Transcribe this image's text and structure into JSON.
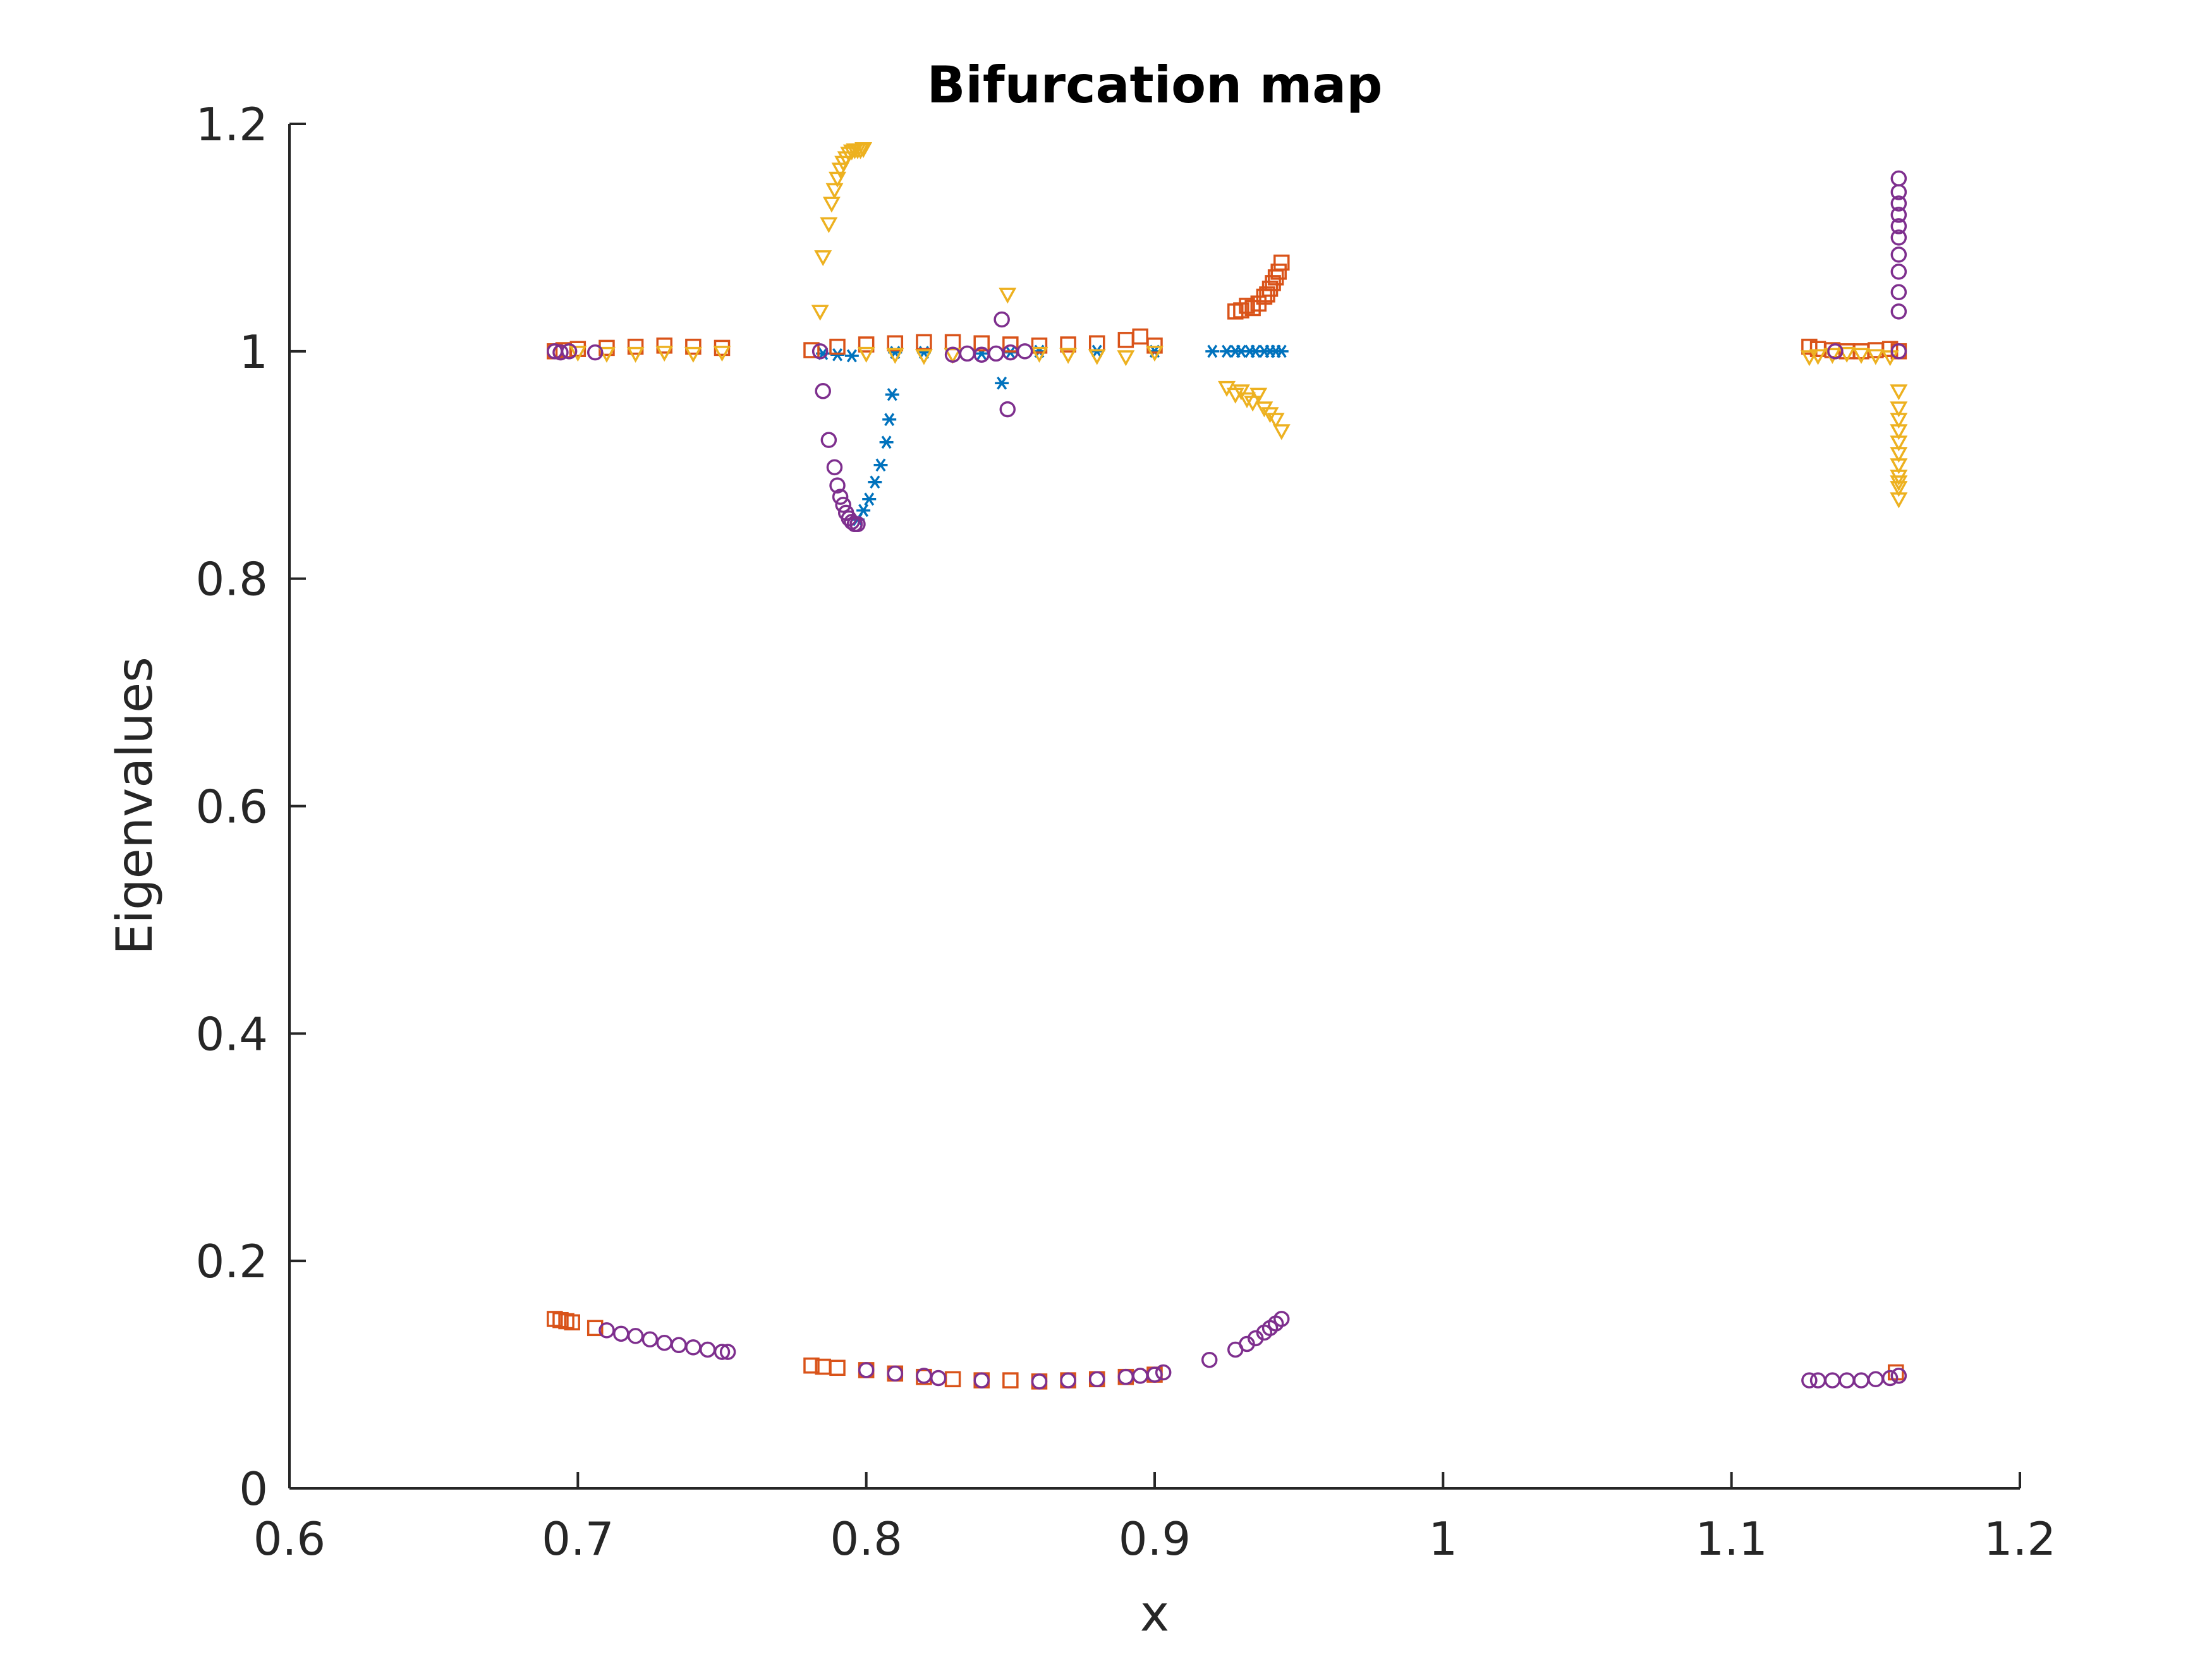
{
  "chart_data": {
    "type": "scatter",
    "title": "Bifurcation map",
    "xlabel": "x",
    "ylabel": "Eigenvalues",
    "xlim": [
      0.6,
      1.2
    ],
    "ylim": [
      0,
      1.2
    ],
    "xticks": [
      0.6,
      0.7,
      0.8,
      0.9,
      1.0,
      1.1,
      1.2
    ],
    "xtick_labels": [
      "0.6",
      "0.7",
      "0.8",
      "0.9",
      "1",
      "1.1",
      "1.2"
    ],
    "yticks": [
      0,
      0.2,
      0.4,
      0.6,
      0.8,
      1.0,
      1.2
    ],
    "ytick_labels": [
      "0",
      "0.2",
      "0.4",
      "0.6",
      "0.8",
      "1",
      "1.2"
    ],
    "grid": false,
    "legend": "none",
    "series": [
      {
        "marker": "asterisk",
        "color": "#0072BD",
        "x": [
          0.785,
          0.79,
          0.795,
          0.797,
          0.799,
          0.801,
          0.803,
          0.805,
          0.807,
          0.808,
          0.809,
          0.81,
          0.82,
          0.84,
          0.847,
          0.85,
          0.86,
          0.88,
          0.9,
          0.92,
          0.925,
          0.928,
          0.93,
          0.933,
          0.935,
          0.938,
          0.94,
          0.942,
          0.944
        ],
        "y": [
          0.998,
          0.997,
          0.996,
          0.852,
          0.86,
          0.87,
          0.885,
          0.9,
          0.92,
          0.94,
          0.962,
          0.999,
          0.999,
          0.998,
          0.972,
          0.999,
          1.0,
          1.0,
          1.0,
          1.0,
          1.0,
          1.0,
          1.0,
          1.0,
          1.0,
          1.0,
          1.0,
          1.0,
          1.0
        ]
      },
      {
        "marker": "square",
        "color": "#D95319",
        "x": [
          0.692,
          0.695,
          0.7,
          0.71,
          0.72,
          0.73,
          0.74,
          0.75,
          0.692,
          0.694,
          0.696,
          0.698,
          0.706,
          0.781,
          0.79,
          0.8,
          0.81,
          0.82,
          0.83,
          0.84,
          0.85,
          0.86,
          0.87,
          0.88,
          0.89,
          0.895,
          0.9,
          0.928,
          0.93,
          0.932,
          0.934,
          0.936,
          0.938,
          0.939,
          0.94,
          0.941,
          0.942,
          0.943,
          0.944,
          0.781,
          0.785,
          0.79,
          0.8,
          0.81,
          0.82,
          0.83,
          0.84,
          0.85,
          0.86,
          0.87,
          0.88,
          0.89,
          0.9,
          1.127,
          1.13,
          1.135,
          1.14,
          1.145,
          1.15,
          1.155,
          1.158,
          1.157
        ],
        "y": [
          1.0,
          1.001,
          1.002,
          1.003,
          1.004,
          1.005,
          1.004,
          1.003,
          0.149,
          0.148,
          0.147,
          0.146,
          0.141,
          1.001,
          1.004,
          1.006,
          1.007,
          1.008,
          1.008,
          1.007,
          1.006,
          1.005,
          1.006,
          1.007,
          1.01,
          1.013,
          1.005,
          1.035,
          1.036,
          1.04,
          1.038,
          1.042,
          1.048,
          1.05,
          1.055,
          1.06,
          1.065,
          1.07,
          1.078,
          0.108,
          0.107,
          0.106,
          0.104,
          0.101,
          0.098,
          0.096,
          0.095,
          0.095,
          0.094,
          0.095,
          0.096,
          0.098,
          0.1,
          1.004,
          1.002,
          1.001,
          1.0,
          1.0,
          1.001,
          1.002,
          1.0,
          0.102
        ]
      },
      {
        "marker": "triangle-down",
        "color": "#EDB120",
        "x": [
          0.7,
          0.71,
          0.72,
          0.73,
          0.74,
          0.75,
          0.784,
          0.785,
          0.787,
          0.788,
          0.789,
          0.79,
          0.791,
          0.792,
          0.793,
          0.794,
          0.795,
          0.796,
          0.797,
          0.798,
          0.799,
          0.8,
          0.81,
          0.82,
          0.83,
          0.849,
          0.86,
          0.87,
          0.88,
          0.89,
          0.9,
          0.925,
          0.928,
          0.93,
          0.932,
          0.934,
          0.936,
          0.938,
          0.94,
          0.942,
          0.944,
          1.127,
          1.13,
          1.135,
          1.14,
          1.145,
          1.15,
          1.155,
          1.158,
          1.158,
          1.158,
          1.158,
          1.158,
          1.158,
          1.158,
          1.158,
          1.158,
          1.158,
          1.158
        ],
        "y": [
          0.999,
          0.998,
          0.998,
          0.999,
          0.998,
          0.999,
          1.035,
          1.083,
          1.112,
          1.13,
          1.142,
          1.152,
          1.16,
          1.166,
          1.17,
          1.174,
          1.176,
          1.177,
          1.177,
          1.177,
          1.178,
          0.998,
          0.997,
          0.996,
          0.997,
          1.05,
          0.998,
          0.997,
          0.996,
          0.995,
          0.999,
          0.968,
          0.962,
          0.965,
          0.958,
          0.955,
          0.962,
          0.95,
          0.945,
          0.94,
          0.93,
          0.995,
          0.996,
          0.997,
          0.998,
          0.997,
          0.996,
          0.995,
          0.965,
          0.95,
          0.94,
          0.93,
          0.92,
          0.91,
          0.9,
          0.89,
          0.885,
          0.88,
          0.87
        ]
      },
      {
        "marker": "circle",
        "color": "#7E2F8E",
        "x": [
          0.692,
          0.694,
          0.697,
          0.706,
          0.784,
          0.785,
          0.787,
          0.789,
          0.79,
          0.791,
          0.792,
          0.793,
          0.794,
          0.795,
          0.796,
          0.797,
          0.83,
          0.835,
          0.84,
          0.845,
          0.85,
          0.855,
          0.847,
          0.849,
          0.71,
          0.715,
          0.72,
          0.725,
          0.73,
          0.735,
          0.74,
          0.745,
          0.75,
          0.752,
          0.8,
          0.81,
          0.82,
          0.825,
          0.84,
          0.86,
          0.87,
          0.88,
          0.89,
          0.895,
          0.9,
          0.903,
          0.919,
          0.928,
          0.932,
          0.935,
          0.938,
          0.94,
          0.942,
          0.944,
          1.127,
          1.13,
          1.135,
          1.14,
          1.145,
          1.15,
          1.155,
          1.158,
          1.136,
          1.158,
          1.158,
          1.158,
          1.158,
          1.158,
          1.158,
          1.158,
          1.158,
          1.158,
          1.158,
          1.158
        ],
        "y": [
          1.0,
          0.999,
          1.0,
          0.999,
          1.0,
          0.965,
          0.922,
          0.898,
          0.882,
          0.872,
          0.865,
          0.858,
          0.853,
          0.85,
          0.848,
          0.848,
          0.997,
          0.998,
          0.997,
          0.998,
          0.999,
          1.0,
          1.028,
          0.949,
          0.139,
          0.136,
          0.134,
          0.131,
          0.128,
          0.126,
          0.124,
          0.122,
          0.12,
          0.12,
          0.104,
          0.101,
          0.099,
          0.097,
          0.095,
          0.094,
          0.095,
          0.096,
          0.098,
          0.099,
          0.1,
          0.102,
          0.113,
          0.122,
          0.127,
          0.132,
          0.137,
          0.141,
          0.145,
          0.149,
          0.095,
          0.095,
          0.095,
          0.095,
          0.095,
          0.096,
          0.097,
          0.099,
          1.0,
          1.0,
          1.035,
          1.052,
          1.07,
          1.085,
          1.1,
          1.11,
          1.12,
          1.13,
          1.14,
          1.152
        ]
      }
    ]
  }
}
